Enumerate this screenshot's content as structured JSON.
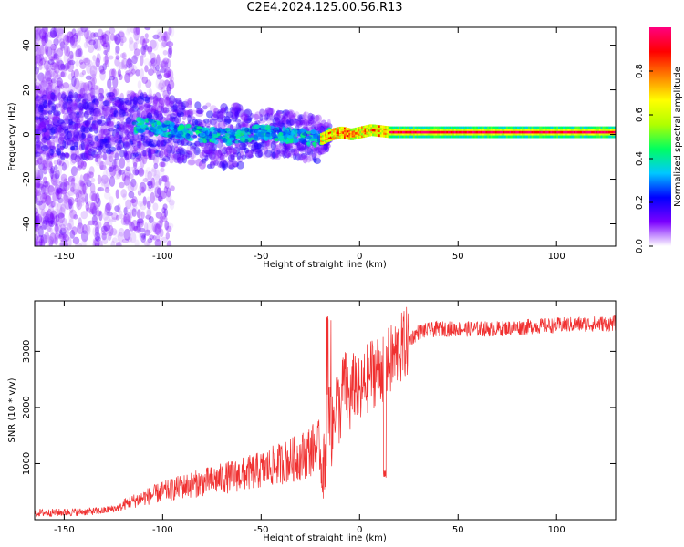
{
  "title": "C2E4.2024.125.00.56.R13",
  "chart_data": [
    {
      "type": "heatmap",
      "title": "C2E4.2024.125.00.56.R13",
      "xlabel": "Height of straight line (km)",
      "ylabel": "Frequency (Hz)",
      "xlim": [
        -165,
        130
      ],
      "ylim": [
        -50,
        48
      ],
      "x_ticks": [
        "-150",
        "-100",
        "-50",
        "0",
        "50",
        "100"
      ],
      "y_ticks": [
        "-40",
        "-20",
        "0",
        "20",
        "40"
      ],
      "grid": false,
      "colorbar": {
        "label": "Normalized spectral amplitude",
        "range": [
          0,
          1
        ],
        "ticks": [
          "0.0",
          "0.2",
          "0.4",
          "0.6",
          "0.8"
        ],
        "colormap": [
          "#ffffff",
          "#7b00ff",
          "#0000ff",
          "#00c8ff",
          "#00ff60",
          "#b0ff00",
          "#ffff00",
          "#ff8000",
          "#ff0000",
          "#ff0080"
        ]
      },
      "ridge": [
        {
          "x": -110,
          "y": 4
        },
        {
          "x": -95,
          "y": 2
        },
        {
          "x": -80,
          "y": 0
        },
        {
          "x": -65,
          "y": -1
        },
        {
          "x": -50,
          "y": 1
        },
        {
          "x": -40,
          "y": 0
        },
        {
          "x": -30,
          "y": -1
        },
        {
          "x": -20,
          "y": -2
        },
        {
          "x": -15,
          "y": 0
        },
        {
          "x": -10,
          "y": 1
        },
        {
          "x": -5,
          "y": 0
        },
        {
          "x": 0,
          "y": 1
        },
        {
          "x": 5,
          "y": 2
        },
        {
          "x": 15,
          "y": 1
        },
        {
          "x": 50,
          "y": 1
        },
        {
          "x": 100,
          "y": 1
        },
        {
          "x": 130,
          "y": 1
        }
      ]
    },
    {
      "type": "line",
      "xlabel": "Height of straight line (km)",
      "ylabel": "SNR (10 * v/v)",
      "xlim": [
        -165,
        130
      ],
      "ylim": [
        0,
        3900
      ],
      "x_ticks": [
        "-150",
        "-100",
        "-50",
        "0",
        "50",
        "100"
      ],
      "y_ticks": [
        "1000",
        "2000",
        "3000"
      ],
      "grid": false,
      "color": "#f03030",
      "series": [
        {
          "x": [
            -165,
            -150,
            -140,
            -130,
            -120,
            -110,
            -100,
            -90,
            -80,
            -70,
            -60,
            -50,
            -40,
            -30,
            -25,
            -20,
            -18,
            -16,
            -14,
            -12,
            -10,
            -8,
            -5,
            -2,
            0,
            5,
            10,
            15,
            20,
            25,
            30,
            40,
            50,
            70,
            90,
            110,
            130
          ],
          "values": [
            120,
            130,
            140,
            160,
            230,
            330,
            420,
            500,
            560,
            620,
            680,
            750,
            850,
            950,
            1050,
            1100,
            900,
            2000,
            1500,
            2200,
            1900,
            2500,
            2100,
            2500,
            2200,
            2600,
            2700,
            2800,
            3000,
            3200,
            3350,
            3400,
            3400,
            3400,
            3450,
            3480,
            3500
          ]
        }
      ]
    }
  ]
}
